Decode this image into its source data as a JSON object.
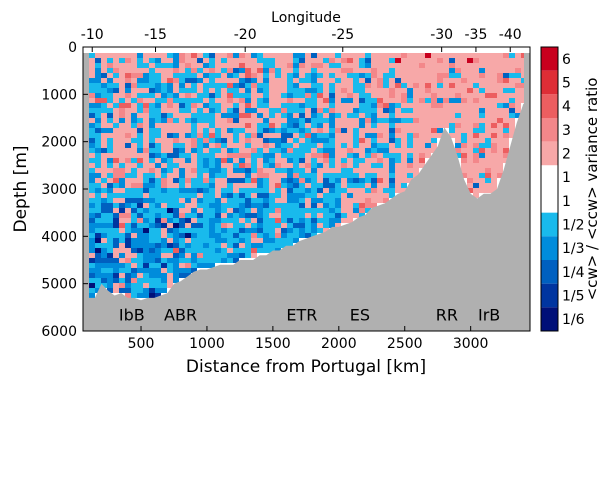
{
  "chart_data": {
    "type": "heatmap",
    "xlabel": "Distance from Portugal [km]",
    "ylabel": "Depth [m]",
    "top_axis_label": "Longitude",
    "xlim": [
      60,
      3450
    ],
    "ylim": [
      0,
      6000
    ],
    "y_inverted": true,
    "x_ticks": [
      500,
      1000,
      1500,
      2000,
      2500,
      3000
    ],
    "x_tick_labels": [
      "500",
      "1000",
      "1500",
      "2000",
      "2500",
      "3000"
    ],
    "y_ticks": [
      0,
      1000,
      2000,
      3000,
      4000,
      5000,
      6000
    ],
    "y_tick_labels": [
      "0",
      "1000",
      "2000",
      "3000",
      "4000",
      "5000",
      "6000"
    ],
    "top_ticks": [
      {
        "label": "-10",
        "distance": 130
      },
      {
        "label": "-15",
        "distance": 610
      },
      {
        "label": "-20",
        "distance": 1290
      },
      {
        "label": "-25",
        "distance": 2030
      },
      {
        "label": "-30",
        "distance": 2780
      },
      {
        "label": "-35",
        "distance": 3040
      },
      {
        "label": "-40",
        "distance": 3300
      }
    ],
    "annotations": [
      {
        "text": "IbB",
        "distance": 430,
        "depth": 5650
      },
      {
        "text": "ABR",
        "distance": 800,
        "depth": 5650
      },
      {
        "text": "ETR",
        "distance": 1720,
        "depth": 5650
      },
      {
        "text": "ES",
        "distance": 2160,
        "depth": 5650
      },
      {
        "text": "RR",
        "distance": 2820,
        "depth": 5650
      },
      {
        "text": "IrB",
        "distance": 3140,
        "depth": 5650
      }
    ],
    "bathymetry": {
      "distance": [
        90,
        150,
        200,
        250,
        300,
        350,
        400,
        450,
        500,
        550,
        600,
        650,
        700,
        750,
        800,
        850,
        900,
        950,
        1000,
        1050,
        1100,
        1150,
        1200,
        1250,
        1300,
        1350,
        1400,
        1450,
        1500,
        1550,
        1600,
        1650,
        1700,
        1750,
        1800,
        1850,
        1900,
        1950,
        2000,
        2050,
        2100,
        2150,
        2200,
        2250,
        2300,
        2350,
        2400,
        2450,
        2500,
        2550,
        2600,
        2650,
        2700,
        2750,
        2800,
        2850,
        2900,
        2950,
        3000,
        3050,
        3100,
        3150,
        3200,
        3250,
        3300,
        3350,
        3400,
        3430
      ],
      "depth": [
        5300,
        5300,
        5000,
        5150,
        5250,
        5200,
        5300,
        5300,
        5350,
        5300,
        5300,
        5250,
        5200,
        5000,
        4950,
        4850,
        4750,
        4700,
        4700,
        4650,
        4600,
        4600,
        4600,
        4500,
        4500,
        4500,
        4400,
        4400,
        4300,
        4300,
        4200,
        4200,
        4100,
        4050,
        4000,
        3950,
        3900,
        3800,
        3800,
        3750,
        3700,
        3600,
        3550,
        3400,
        3350,
        3300,
        3200,
        3100,
        3050,
        2800,
        2700,
        2500,
        2300,
        2100,
        1700,
        1900,
        2300,
        2800,
        3100,
        3200,
        3100,
        3100,
        3000,
        2600,
        2100,
        1600,
        1200,
        1200
      ]
    },
    "colorbar": {
      "title": "<cw> / <ccw> variance ratio",
      "levels": [
        {
          "label": "6",
          "color": "#c8001e"
        },
        {
          "label": "5",
          "color": "#de2e36"
        },
        {
          "label": "4",
          "color": "#ec5e60"
        },
        {
          "label": "3",
          "color": "#f3878a"
        },
        {
          "label": "2",
          "color": "#f7a8a8"
        },
        {
          "label": "1",
          "color": "#ffffff"
        },
        {
          "label": "1",
          "color": "#ffffff"
        },
        {
          "label": "1/2",
          "color": "#19baec"
        },
        {
          "label": "1/3",
          "color": "#008cdb"
        },
        {
          "label": "1/4",
          "color": "#0060c0"
        },
        {
          "label": "1/5",
          "color": "#0035a0"
        },
        {
          "label": "1/6",
          "color": "#001078"
        }
      ]
    },
    "seafloor_color": "#b0b0b0"
  }
}
